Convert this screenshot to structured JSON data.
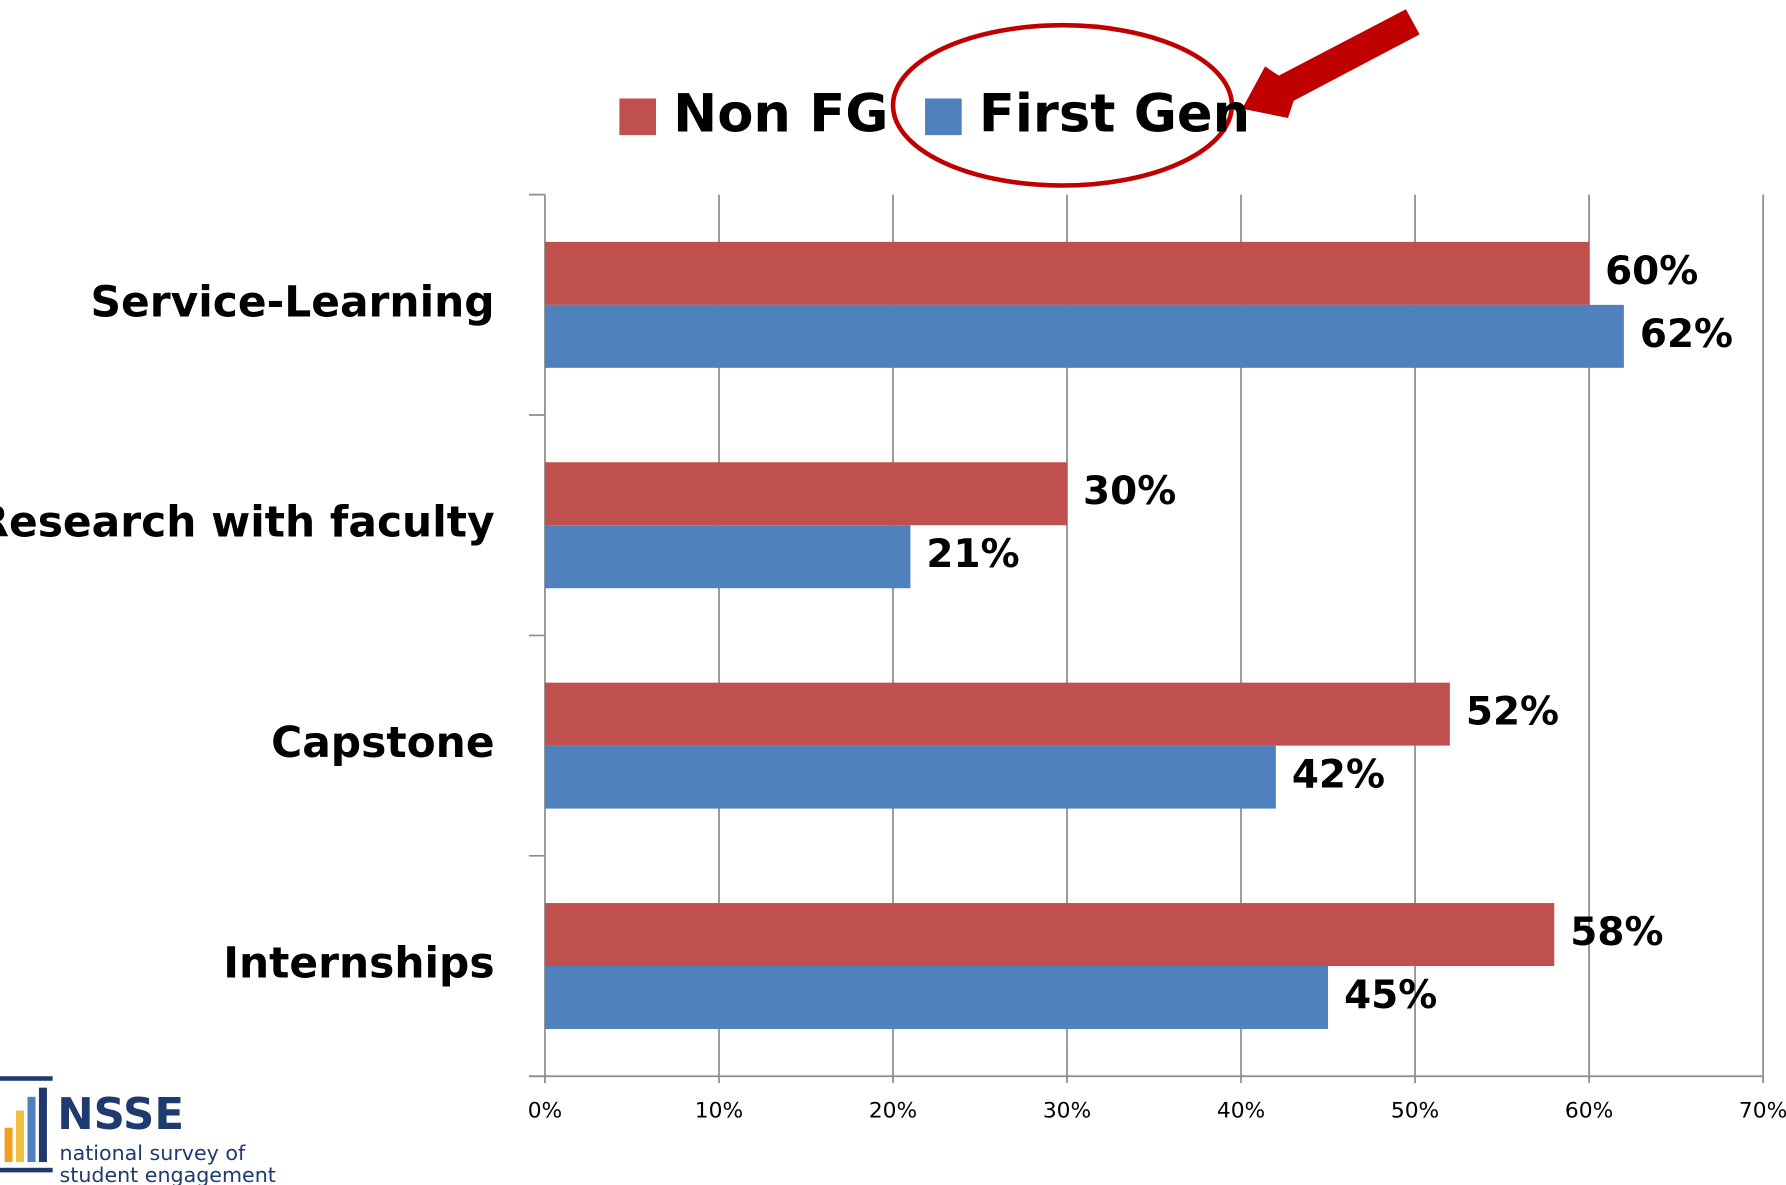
{
  "chart_data": {
    "type": "hbar",
    "categories": [
      "Service-Learning",
      "Research with faculty",
      "Capstone",
      "Internships"
    ],
    "series": [
      {
        "name": "Non FG",
        "color": "#c0504d",
        "values": [
          60,
          30,
          52,
          58
        ],
        "value_labels": [
          "60%",
          "30%",
          "52%",
          "58%"
        ]
      },
      {
        "name": "First Gen",
        "color": "#4f81bd",
        "values": [
          62,
          21,
          42,
          45
        ],
        "value_labels": [
          "62%",
          "21%",
          "42%",
          "45%"
        ]
      }
    ],
    "xlim": [
      0,
      70
    ],
    "xticks": [
      {
        "value": 0,
        "label": "0%"
      },
      {
        "value": 10,
        "label": "10%"
      },
      {
        "value": 20,
        "label": "20%"
      },
      {
        "value": 30,
        "label": "30%"
      },
      {
        "value": 40,
        "label": "40%"
      },
      {
        "value": 50,
        "label": "50%"
      },
      {
        "value": 60,
        "label": "60%"
      },
      {
        "value": 70,
        "label": "70%"
      }
    ],
    "grid": true
  },
  "logo": {
    "name": "NSSE",
    "line1": "national survey of",
    "line2": "student engagement"
  }
}
